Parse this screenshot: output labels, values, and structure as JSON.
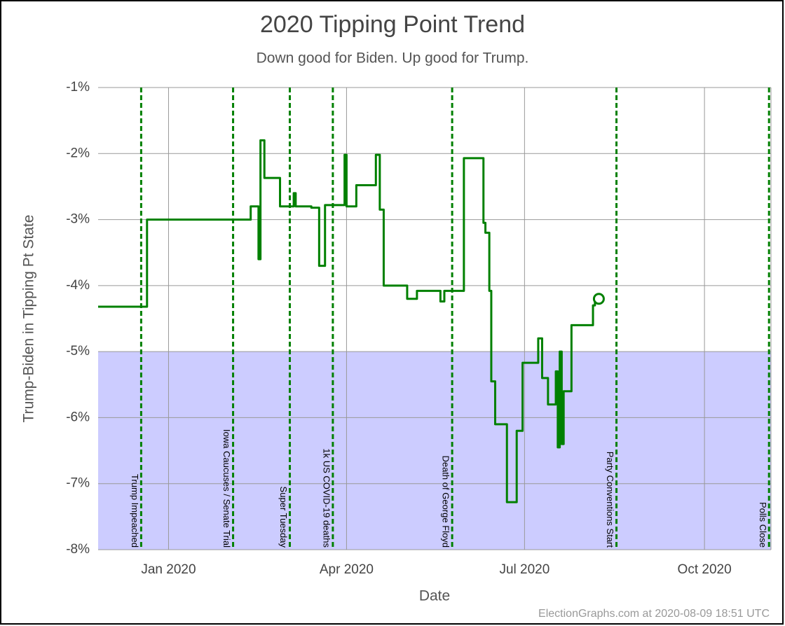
{
  "chart_data": {
    "type": "line",
    "title": "2020 Tipping Point Trend",
    "subtitle": "Down good for Biden. Up good for Trump.",
    "x_label": "Date",
    "y_label": "Trump-Biden in Tipping Pt State",
    "footer": "ElectionGraphs.com at 2020-08-09 18:51 UTC",
    "xlim": [
      "2019-11-26",
      "2020-11-04"
    ],
    "xticks": [
      {
        "value": "2020-01-01",
        "label": "Jan 2020"
      },
      {
        "value": "2020-04-01",
        "label": "Apr 2020"
      },
      {
        "value": "2020-07-01",
        "label": "Jul 2020"
      },
      {
        "value": "2020-10-01",
        "label": "Oct 2020"
      }
    ],
    "ylim": [
      -8,
      -1
    ],
    "yticks": [
      {
        "value": -1,
        "label": "-1%"
      },
      {
        "value": -2,
        "label": "-2%"
      },
      {
        "value": -3,
        "label": "-3%"
      },
      {
        "value": -4,
        "label": "-4%"
      },
      {
        "value": -5,
        "label": "-5%"
      },
      {
        "value": -6,
        "label": "-6%"
      },
      {
        "value": -7,
        "label": "-7%"
      },
      {
        "value": -8,
        "label": "-8%"
      }
    ],
    "grid": true,
    "step": true,
    "shaded_band": {
      "from": -8,
      "to": -5,
      "color": "#ccccff"
    },
    "events": [
      {
        "date": "2019-12-18",
        "label": "Trump Impeached"
      },
      {
        "date": "2020-02-03",
        "label": "Iowa Caucuses / Senate Trial"
      },
      {
        "date": "2020-03-03",
        "label": "Super Tuesday"
      },
      {
        "date": "2020-03-25",
        "label": "1k US COVID-19 deaths"
      },
      {
        "date": "2020-05-25",
        "label": "Death of George Floyd"
      },
      {
        "date": "2020-08-17",
        "label": "Party Conventions Start"
      },
      {
        "date": "2020-11-03",
        "label": "Polls Close"
      }
    ],
    "event_color": "#008000",
    "series": [
      {
        "name": "Tipping Point",
        "color": "#008000",
        "x": [
          "2019-11-26",
          "2019-12-21",
          "2020-02-12",
          "2020-02-16",
          "2020-02-17",
          "2020-02-19",
          "2020-02-27",
          "2020-03-05",
          "2020-03-06",
          "2020-03-14",
          "2020-03-18",
          "2020-03-21",
          "2020-03-31",
          "2020-04-01",
          "2020-04-06",
          "2020-04-16",
          "2020-04-18",
          "2020-04-20",
          "2020-05-02",
          "2020-05-07",
          "2020-05-19",
          "2020-05-21",
          "2020-05-31",
          "2020-06-10",
          "2020-06-11",
          "2020-06-13",
          "2020-06-14",
          "2020-06-16",
          "2020-06-22",
          "2020-06-27",
          "2020-06-30",
          "2020-07-08",
          "2020-07-10",
          "2020-07-13",
          "2020-07-17",
          "2020-07-18",
          "2020-07-19",
          "2020-07-20",
          "2020-07-21",
          "2020-07-25",
          "2020-08-05",
          "2020-08-06",
          "2020-08-08"
        ],
        "values": [
          -4.32,
          -3.0,
          -2.8,
          -3.6,
          -1.8,
          -2.37,
          -2.8,
          -2.6,
          -2.8,
          -2.82,
          -3.7,
          -2.78,
          -2.02,
          -2.8,
          -2.48,
          -2.02,
          -2.85,
          -4.0,
          -4.2,
          -4.08,
          -4.24,
          -4.08,
          -2.07,
          -3.05,
          -3.2,
          -4.08,
          -5.45,
          -6.1,
          -7.28,
          -6.2,
          -5.17,
          -4.8,
          -5.4,
          -5.8,
          -5.3,
          -6.45,
          -5.0,
          -6.4,
          -5.6,
          -4.6,
          -4.3,
          -4.2,
          -4.2
        ]
      }
    ]
  }
}
